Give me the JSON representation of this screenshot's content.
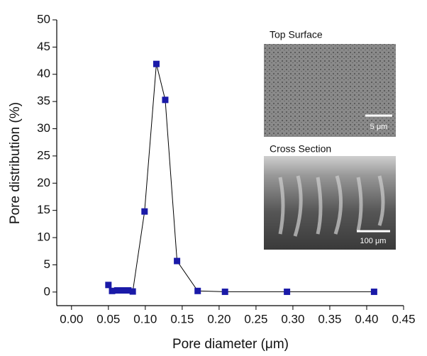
{
  "chart_data": {
    "type": "line",
    "x_label": "Pore diameter (μm)",
    "y_label": "Pore distribution (%)",
    "xlim": [
      -0.02,
      0.45
    ],
    "ylim": [
      -2.5,
      50
    ],
    "xticks": [
      {
        "value": 0,
        "label": "0.00"
      },
      0.05,
      {
        "value": 0.1,
        "label": "0.10"
      },
      0.15,
      {
        "value": 0.2,
        "label": "0.20"
      },
      0.25,
      {
        "value": 0.3,
        "label": "0.30"
      },
      0.35,
      {
        "value": 0.4,
        "label": "0.40"
      },
      0.45
    ],
    "yticks": [
      0,
      5,
      10,
      15,
      20,
      25,
      30,
      35,
      40,
      45,
      50
    ],
    "series": [
      {
        "color": "#1a1aa8",
        "x": [
          0.05,
          0.055,
          0.062,
          0.069,
          0.077,
          0.083,
          0.099,
          0.115,
          0.127,
          0.143,
          0.171,
          0.208,
          0.292,
          0.41
        ],
        "values": [
          1.3,
          0.2,
          0.3,
          0.3,
          0.3,
          0.1,
          14.8,
          41.9,
          35.3,
          5.7,
          0.2,
          0.05,
          0.05,
          0.05
        ]
      }
    ],
    "annotations": [
      "Top Surface",
      "Cross Section",
      "5 μm",
      "100 μm"
    ]
  }
}
